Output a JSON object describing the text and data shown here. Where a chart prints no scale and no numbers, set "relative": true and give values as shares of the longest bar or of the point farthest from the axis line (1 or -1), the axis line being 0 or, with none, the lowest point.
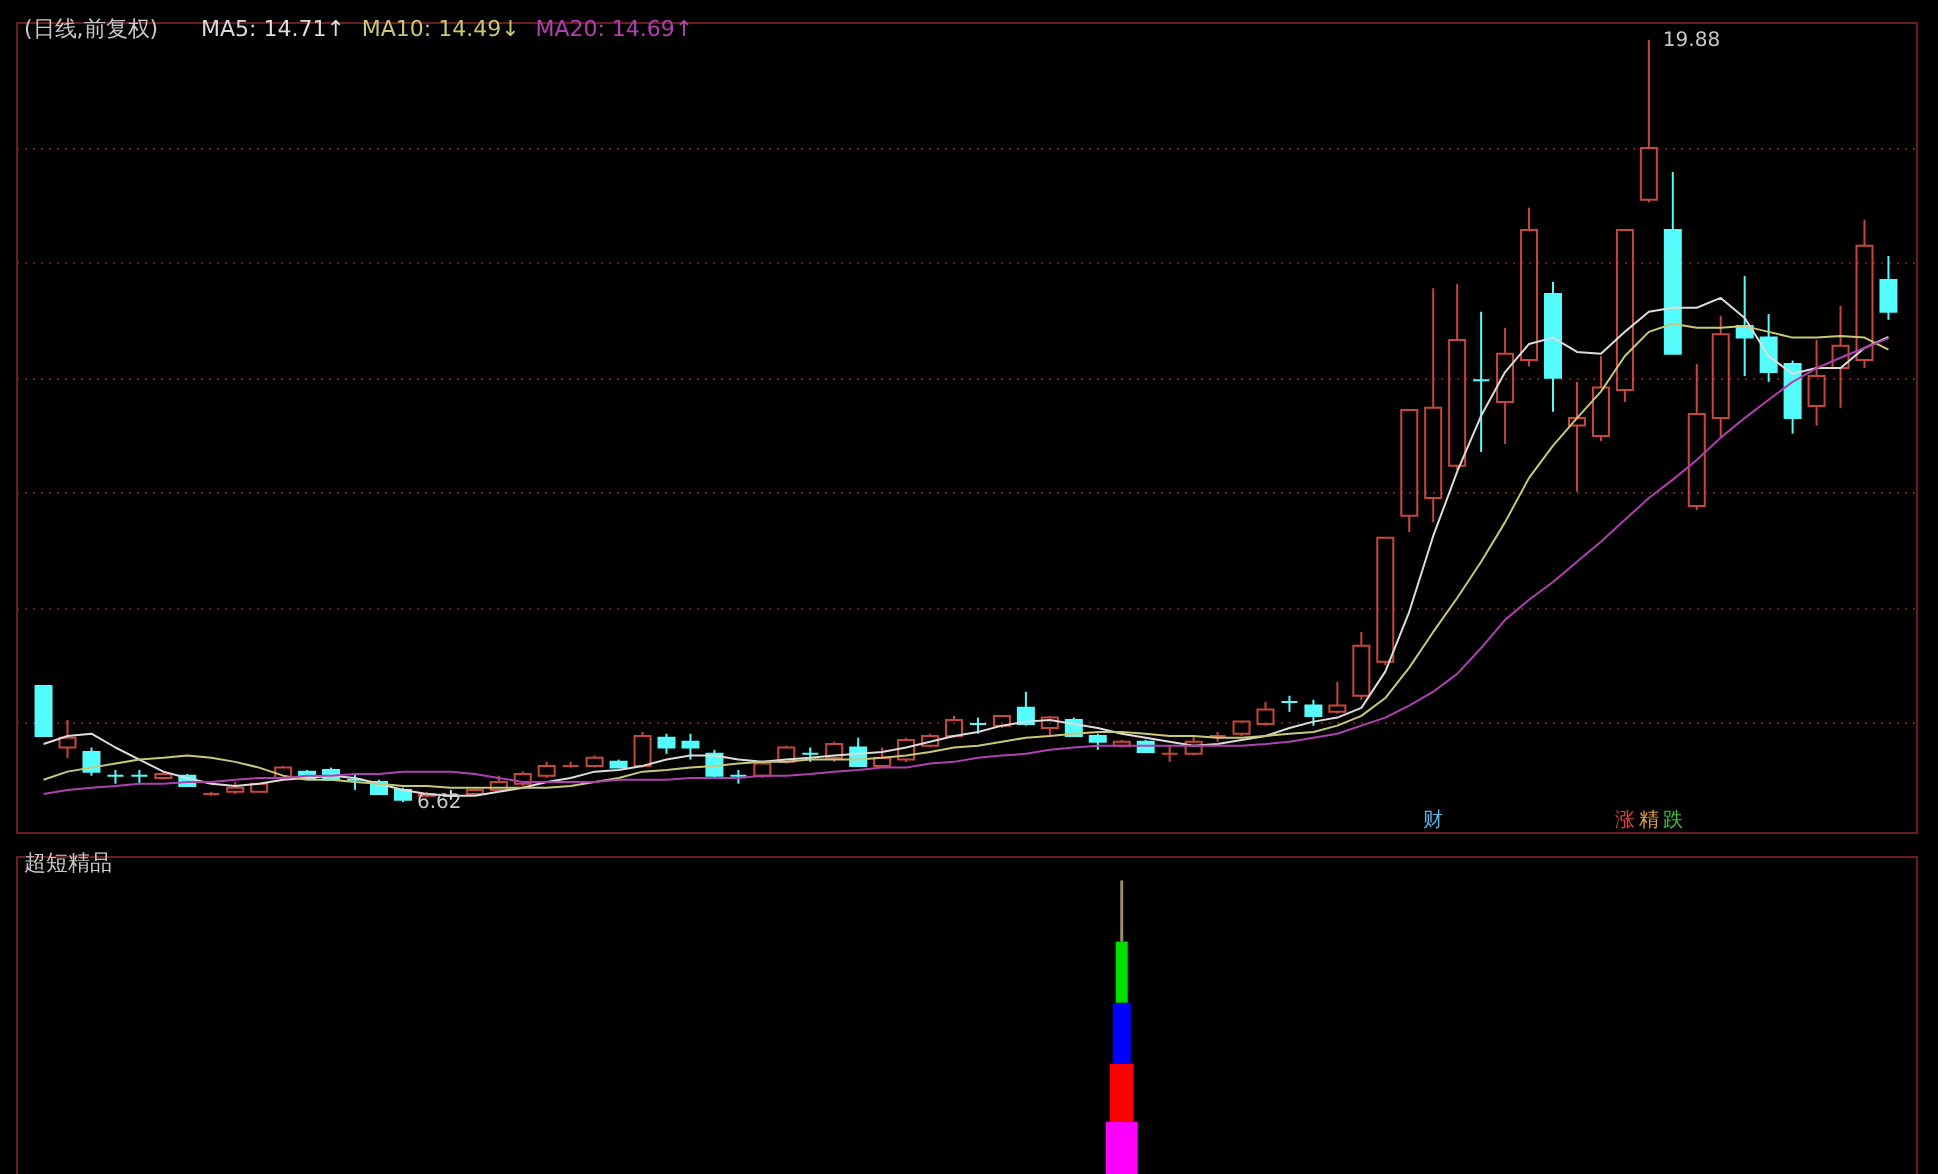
{
  "chart_data": [
    {
      "type": "candlestick",
      "title": "(日线,前复权)",
      "legend": "top left",
      "grid": "y",
      "categories": [
        null,
        null,
        null,
        null,
        null,
        null,
        null,
        null,
        null,
        null,
        null,
        null,
        null,
        null,
        null,
        null,
        null,
        null,
        null,
        null,
        null,
        null,
        null,
        null,
        null,
        null,
        null,
        null,
        null,
        null,
        null,
        null,
        null,
        null,
        null,
        null,
        null,
        null,
        null,
        null,
        null,
        null,
        null,
        null,
        null,
        null,
        null,
        null,
        null,
        null,
        null,
        null,
        null,
        null,
        null,
        null,
        null,
        null,
        null,
        null,
        null,
        null,
        null,
        null,
        null,
        null,
        null,
        null,
        null,
        null,
        null,
        null,
        null,
        null,
        null,
        null,
        null,
        null
      ],
      "ylim": [
        6.1,
        20.19
      ],
      "yticks": [
        {
          "value": 8,
          "label": null
        },
        {
          "value": 10,
          "label": null
        },
        {
          "value": 12,
          "label": null
        },
        {
          "value": 14,
          "label": null
        },
        {
          "value": 16,
          "label": null
        },
        {
          "value": 18,
          "label": null
        }
      ],
      "ohlc": [
        [
          8.64,
          8.64,
          7.77,
          7.77
        ],
        [
          7.57,
          8.05,
          7.39,
          7.74
        ],
        [
          7.49,
          7.57,
          7.08,
          7.15
        ],
        [
          7.08,
          7.18,
          6.94,
          7.08
        ],
        [
          7.08,
          7.18,
          6.94,
          7.08
        ],
        [
          7.04,
          7.15,
          7.01,
          7.11
        ],
        [
          7.08,
          7.11,
          6.9,
          6.9
        ],
        [
          6.76,
          6.8,
          6.73,
          6.76
        ],
        [
          6.8,
          6.97,
          6.76,
          6.87
        ],
        [
          6.8,
          6.94,
          6.8,
          6.94
        ],
        [
          7.04,
          7.25,
          7.04,
          7.22
        ],
        [
          7.15,
          7.18,
          7.04,
          7.04
        ],
        [
          7.18,
          7.22,
          7.01,
          7.01
        ],
        [
          7.01,
          7.11,
          6.83,
          7.01
        ],
        [
          6.97,
          7.01,
          6.76,
          6.76
        ],
        [
          6.83,
          6.87,
          6.62,
          6.66
        ],
        [
          6.73,
          6.8,
          6.7,
          6.76
        ],
        [
          6.73,
          6.83,
          6.66,
          6.73
        ],
        [
          6.76,
          6.87,
          6.73,
          6.83
        ],
        [
          6.83,
          7.08,
          6.8,
          6.97
        ],
        [
          6.94,
          7.15,
          6.9,
          7.11
        ],
        [
          7.08,
          7.32,
          7.04,
          7.25
        ],
        [
          7.25,
          7.32,
          7.22,
          7.25
        ],
        [
          7.25,
          7.43,
          7.22,
          7.39
        ],
        [
          7.32,
          7.36,
          7.22,
          7.22
        ],
        [
          7.25,
          7.84,
          7.22,
          7.77
        ],
        [
          7.74,
          7.81,
          7.46,
          7.57
        ],
        [
          7.67,
          7.81,
          7.36,
          7.57
        ],
        [
          7.46,
          7.53,
          7.04,
          7.08
        ],
        [
          7.08,
          7.18,
          6.94,
          7.08
        ],
        [
          7.08,
          7.32,
          7.04,
          7.29
        ],
        [
          7.32,
          7.6,
          7.29,
          7.57
        ],
        [
          7.46,
          7.57,
          7.32,
          7.46
        ],
        [
          7.39,
          7.67,
          7.32,
          7.63
        ],
        [
          7.57,
          7.74,
          7.25,
          7.25
        ],
        [
          7.25,
          7.57,
          7.22,
          7.39
        ],
        [
          7.36,
          7.74,
          7.32,
          7.7
        ],
        [
          7.6,
          7.81,
          7.57,
          7.77
        ],
        [
          7.77,
          8.12,
          7.74,
          8.05
        ],
        [
          7.98,
          8.09,
          7.81,
          7.98
        ],
        [
          7.95,
          8.12,
          7.91,
          8.12
        ],
        [
          8.26,
          8.54,
          7.95,
          7.98
        ],
        [
          7.91,
          8.12,
          7.77,
          8.09
        ],
        [
          8.05,
          8.09,
          7.77,
          7.77
        ],
        [
          7.77,
          7.81,
          7.53,
          7.67
        ],
        [
          7.6,
          7.7,
          7.57,
          7.67
        ],
        [
          7.67,
          7.7,
          7.49,
          7.49
        ],
        [
          7.46,
          7.6,
          7.32,
          7.46
        ],
        [
          7.46,
          7.77,
          7.43,
          7.67
        ],
        [
          7.77,
          7.84,
          7.67,
          7.77
        ],
        [
          7.81,
          8.02,
          7.77,
          8.02
        ],
        [
          7.98,
          8.36,
          7.95,
          8.23
        ],
        [
          8.36,
          8.47,
          8.19,
          8.36
        ],
        [
          8.3,
          8.4,
          7.95,
          8.12
        ],
        [
          8.19,
          8.71,
          8.16,
          8.3
        ],
        [
          8.47,
          9.58,
          8.4,
          9.34
        ],
        [
          9.06,
          11.22,
          9.0,
          11.22
        ],
        [
          11.6,
          13.44,
          11.32,
          13.44
        ],
        [
          11.91,
          15.56,
          11.49,
          13.48
        ],
        [
          12.47,
          15.63,
          12.4,
          14.66
        ],
        [
          13.96,
          15.15,
          12.71,
          13.96
        ],
        [
          13.58,
          14.87,
          12.85,
          14.42
        ],
        [
          14.31,
          16.96,
          14.2,
          16.57
        ],
        [
          15.46,
          15.67,
          13.41,
          14.0
        ],
        [
          13.17,
          13.93,
          12.02,
          13.3
        ],
        [
          12.99,
          14.38,
          12.9,
          13.83
        ],
        [
          13.79,
          16.57,
          13.58,
          16.57
        ],
        [
          17.1,
          19.88,
          17.05,
          18.0
        ],
        [
          16.57,
          17.58,
          14.42,
          14.42
        ],
        [
          11.77,
          14.24,
          11.7,
          13.37
        ],
        [
          13.3,
          15.08,
          12.96,
          14.76
        ],
        [
          14.9,
          15.77,
          14.03,
          14.7
        ],
        [
          14.7,
          15.11,
          13.93,
          14.1
        ],
        [
          14.24,
          14.3,
          13.03,
          13.3
        ],
        [
          13.51,
          14.66,
          13.17,
          14.03
        ],
        [
          14.17,
          15.25,
          13.48,
          14.56
        ],
        [
          14.31,
          16.75,
          14.17,
          16.3
        ],
        [
          15.7,
          16.12,
          15.01,
          15.15
        ]
      ],
      "colors": [
        "#54fcfc",
        "#c8463c",
        "#54fcfc",
        "#54fcfc",
        "#54fcfc",
        "#c8463c",
        "#54fcfc",
        "#c8463c",
        "#c8463c",
        "#c8463c",
        "#c8463c",
        "#54fcfc",
        "#54fcfc",
        "#54fcfc",
        "#54fcfc",
        "#54fcfc",
        "#c8463c",
        "#e0e0e0",
        "#c8463c",
        "#c8463c",
        "#c8463c",
        "#c8463c",
        "#c8463c",
        "#c8463c",
        "#54fcfc",
        "#c8463c",
        "#54fcfc",
        "#54fcfc",
        "#54fcfc",
        "#54fcfc",
        "#c8463c",
        "#c8463c",
        "#54fcfc",
        "#c8463c",
        "#54fcfc",
        "#c8463c",
        "#c8463c",
        "#c8463c",
        "#c8463c",
        "#54fcfc",
        "#c8463c",
        "#54fcfc",
        "#c8463c",
        "#54fcfc",
        "#54fcfc",
        "#c8463c",
        "#54fcfc",
        "#c8463c",
        "#c8463c",
        "#c8463c",
        "#c8463c",
        "#c8463c",
        "#54fcfc",
        "#54fcfc",
        "#c8463c",
        "#c8463c",
        "#c8463c",
        "#c8463c",
        "#c8463c",
        "#c8463c",
        "#54fcfc",
        "#c8463c",
        "#c8463c",
        "#54fcfc",
        "#c8463c",
        "#c8463c",
        "#c8463c",
        "#c8463c",
        "#54fcfc",
        "#c8463c",
        "#c8463c",
        "#54fcfc",
        "#54fcfc",
        "#54fcfc",
        "#c8463c",
        "#c8463c",
        "#c8463c",
        "#54fcfc"
      ],
      "series": [
        {
          "name": "MA5: 14.71↑",
          "type": "line",
          "color": "#dcdcdc",
          "values": [
            7.63,
            7.77,
            7.81,
            7.57,
            7.36,
            7.15,
            7.04,
            6.94,
            6.9,
            6.94,
            7.01,
            7.04,
            7.08,
            7.04,
            6.94,
            6.83,
            6.76,
            6.73,
            6.73,
            6.8,
            6.87,
            6.97,
            7.04,
            7.15,
            7.18,
            7.25,
            7.36,
            7.43,
            7.43,
            7.36,
            7.32,
            7.36,
            7.39,
            7.43,
            7.46,
            7.49,
            7.57,
            7.67,
            7.77,
            7.84,
            7.95,
            8.02,
            8.05,
            7.98,
            7.91,
            7.81,
            7.74,
            7.67,
            7.6,
            7.63,
            7.7,
            7.77,
            7.91,
            8.02,
            8.09,
            8.26,
            8.89,
            9.93,
            11.25,
            12.37,
            13.34,
            14.1,
            14.59,
            14.7,
            14.45,
            14.42,
            14.8,
            15.15,
            15.22,
            15.22,
            15.39,
            15.04,
            14.38,
            14.07,
            14.17,
            14.17,
            14.52,
            14.71
          ]
        },
        {
          "name": "MA10: 14.49↓",
          "type": "line",
          "color": "#c8c878",
          "values": [
            7.01,
            7.15,
            7.22,
            7.29,
            7.36,
            7.39,
            7.43,
            7.39,
            7.32,
            7.22,
            7.08,
            7.01,
            7.01,
            6.97,
            6.94,
            6.9,
            6.9,
            6.87,
            6.87,
            6.87,
            6.87,
            6.87,
            6.9,
            6.97,
            7.04,
            7.15,
            7.18,
            7.22,
            7.25,
            7.29,
            7.32,
            7.32,
            7.36,
            7.36,
            7.36,
            7.39,
            7.43,
            7.49,
            7.57,
            7.6,
            7.67,
            7.74,
            7.77,
            7.81,
            7.84,
            7.84,
            7.81,
            7.77,
            7.77,
            7.74,
            7.74,
            7.77,
            7.81,
            7.84,
            7.95,
            8.12,
            8.43,
            8.96,
            9.58,
            10.17,
            10.8,
            11.49,
            12.26,
            12.82,
            13.3,
            13.76,
            14.38,
            14.8,
            14.94,
            14.87,
            14.87,
            14.9,
            14.8,
            14.7,
            14.7,
            14.73,
            14.7,
            14.49
          ]
        },
        {
          "name": "MA20: 14.69↑",
          "type": "line",
          "color": "#b040b0",
          "values": [
            6.76,
            6.83,
            6.87,
            6.9,
            6.94,
            6.94,
            6.97,
            6.97,
            7.01,
            7.04,
            7.04,
            7.08,
            7.08,
            7.11,
            7.11,
            7.15,
            7.15,
            7.15,
            7.11,
            7.04,
            6.97,
            6.97,
            6.97,
            6.97,
            7.01,
            7.01,
            7.01,
            7.04,
            7.04,
            7.04,
            7.08,
            7.08,
            7.11,
            7.15,
            7.18,
            7.22,
            7.22,
            7.29,
            7.32,
            7.39,
            7.43,
            7.46,
            7.53,
            7.57,
            7.6,
            7.6,
            7.6,
            7.6,
            7.6,
            7.6,
            7.6,
            7.63,
            7.67,
            7.74,
            7.81,
            7.95,
            8.09,
            8.3,
            8.54,
            8.85,
            9.3,
            9.79,
            10.14,
            10.45,
            10.8,
            11.15,
            11.53,
            11.91,
            12.23,
            12.57,
            12.96,
            13.3,
            13.62,
            13.93,
            14.17,
            14.35,
            14.52,
            14.69
          ]
        }
      ],
      "annotations": [
        "19.88",
        "6.62",
        "财",
        "涨",
        "精",
        "跌"
      ]
    },
    {
      "type": "bar",
      "title": "超短精品",
      "stacked": true,
      "relative": true,
      "categories": [
        null,
        null,
        null,
        null,
        null,
        null,
        null,
        null,
        null,
        null,
        null,
        null,
        null,
        null,
        null,
        null,
        null,
        null,
        null,
        null,
        null,
        null,
        null,
        null,
        null,
        null,
        null,
        null,
        null,
        null,
        null,
        null,
        null,
        null,
        null,
        null,
        null,
        null,
        null,
        null,
        null,
        null,
        null,
        null,
        null,
        null,
        null,
        null,
        null,
        null,
        null,
        null,
        null,
        null,
        null,
        null,
        null,
        null,
        null,
        null,
        null,
        null,
        null,
        null,
        null,
        null,
        null,
        null,
        null,
        null,
        null,
        null,
        null,
        null,
        null,
        null,
        null,
        null
      ],
      "series": [
        {
          "color": "#ff00ff",
          "values": [
            null,
            null,
            null,
            null,
            null,
            null,
            null,
            null,
            null,
            null,
            null,
            null,
            null,
            null,
            null,
            null,
            null,
            null,
            null,
            null,
            null,
            null,
            null,
            null,
            null,
            null,
            null,
            null,
            null,
            null,
            null,
            null,
            null,
            null,
            null,
            null,
            null,
            null,
            null,
            null,
            null,
            null,
            null,
            null,
            null,
            0.21,
            null,
            null,
            null,
            null,
            null,
            null,
            null,
            null,
            null,
            null,
            null,
            null,
            null,
            null,
            null,
            null,
            null,
            null,
            null,
            null,
            null,
            null,
            null,
            null,
            null,
            null,
            null,
            null,
            null,
            null,
            null,
            null
          ]
        },
        {
          "color": "#ff0000",
          "values": [
            null,
            null,
            null,
            null,
            null,
            null,
            null,
            null,
            null,
            null,
            null,
            null,
            null,
            null,
            null,
            null,
            null,
            null,
            null,
            null,
            null,
            null,
            null,
            null,
            null,
            null,
            null,
            null,
            null,
            null,
            null,
            null,
            null,
            null,
            null,
            null,
            null,
            null,
            null,
            null,
            null,
            null,
            null,
            null,
            null,
            0.19,
            null,
            null,
            null,
            null,
            null,
            null,
            null,
            null,
            null,
            null,
            null,
            null,
            null,
            null,
            null,
            null,
            null,
            null,
            null,
            null,
            null,
            null,
            null,
            null,
            null,
            null,
            null,
            null,
            null,
            null,
            null,
            null
          ]
        },
        {
          "color": "#0000ff",
          "values": [
            null,
            null,
            null,
            null,
            null,
            null,
            null,
            null,
            null,
            null,
            null,
            null,
            null,
            null,
            null,
            null,
            null,
            null,
            null,
            null,
            null,
            null,
            null,
            null,
            null,
            null,
            null,
            null,
            null,
            null,
            null,
            null,
            null,
            null,
            null,
            null,
            null,
            null,
            null,
            null,
            null,
            null,
            null,
            null,
            null,
            0.2,
            null,
            null,
            null,
            null,
            null,
            null,
            null,
            null,
            null,
            null,
            null,
            null,
            null,
            null,
            null,
            null,
            null,
            null,
            null,
            null,
            null,
            null,
            null,
            null,
            null,
            null,
            null,
            null,
            null,
            null,
            null,
            null
          ]
        },
        {
          "color": "#00e000",
          "values": [
            null,
            null,
            null,
            null,
            null,
            null,
            null,
            null,
            null,
            null,
            null,
            null,
            null,
            null,
            null,
            null,
            null,
            null,
            null,
            null,
            null,
            null,
            null,
            null,
            null,
            null,
            null,
            null,
            null,
            null,
            null,
            null,
            null,
            null,
            null,
            null,
            null,
            null,
            null,
            null,
            null,
            null,
            null,
            null,
            null,
            0.2,
            null,
            null,
            null,
            null,
            null,
            null,
            null,
            null,
            null,
            null,
            null,
            null,
            null,
            null,
            null,
            null,
            null,
            null,
            null,
            null,
            null,
            null,
            null,
            null,
            null,
            null,
            null,
            null,
            null,
            null,
            null,
            null
          ]
        },
        {
          "color": "#a08870",
          "values": [
            null,
            null,
            null,
            null,
            null,
            null,
            null,
            null,
            null,
            null,
            null,
            null,
            null,
            null,
            null,
            null,
            null,
            null,
            null,
            null,
            null,
            null,
            null,
            null,
            null,
            null,
            null,
            null,
            null,
            null,
            null,
            null,
            null,
            null,
            null,
            null,
            null,
            null,
            null,
            null,
            null,
            null,
            null,
            null,
            null,
            0.2,
            null,
            null,
            null,
            null,
            null,
            null,
            null,
            null,
            null,
            null,
            null,
            null,
            null,
            null,
            null,
            null,
            null,
            null,
            null,
            null,
            null,
            null,
            null,
            null,
            null,
            null,
            null,
            null,
            null,
            null,
            null,
            null
          ]
        }
      ]
    }
  ]
}
